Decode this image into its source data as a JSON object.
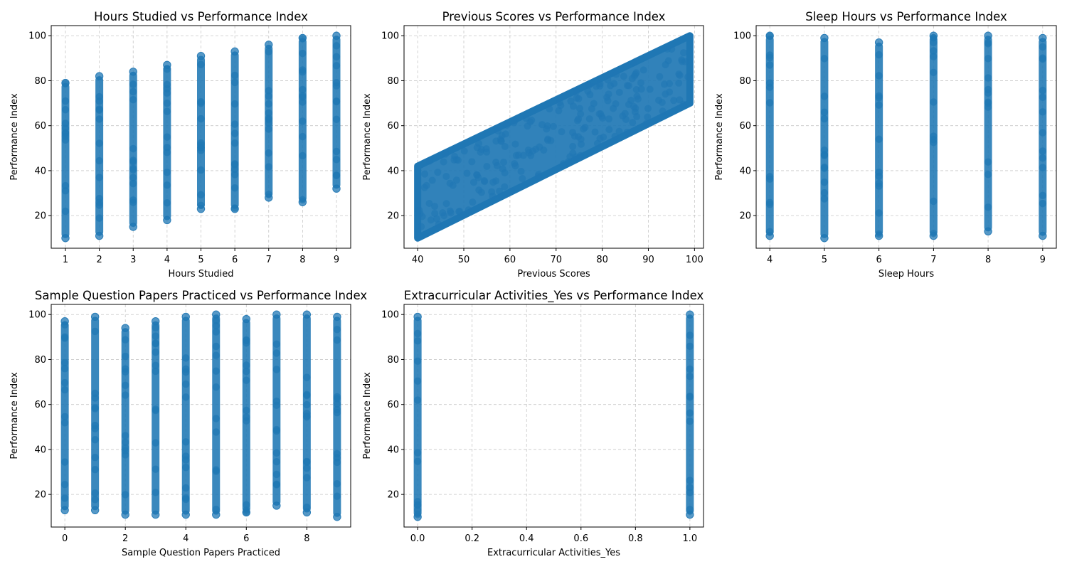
{
  "chart_data": [
    {
      "type": "scatter",
      "title": "Hours Studied vs Performance Index",
      "xlabel": "Hours Studied",
      "ylabel": "Performance Index",
      "xlim": [
        0.58,
        9.42
      ],
      "ylim": [
        5.5,
        104.5
      ],
      "xticks": [
        1,
        2,
        3,
        4,
        5,
        6,
        7,
        8,
        9
      ],
      "yticks": [
        20,
        40,
        60,
        80,
        100
      ],
      "grid": true,
      "color": "#1f77b4",
      "stripes": [
        {
          "x": 1,
          "y": [
            10,
            79
          ]
        },
        {
          "x": 2,
          "y": [
            11,
            82
          ]
        },
        {
          "x": 3,
          "y": [
            15,
            84
          ]
        },
        {
          "x": 4,
          "y": [
            18,
            87
          ]
        },
        {
          "x": 5,
          "y": [
            23,
            91
          ]
        },
        {
          "x": 6,
          "y": [
            23,
            93
          ]
        },
        {
          "x": 7,
          "y": [
            28,
            96
          ]
        },
        {
          "x": 8,
          "y": [
            26,
            99
          ]
        },
        {
          "x": 9,
          "y": [
            32,
            100
          ]
        }
      ]
    },
    {
      "type": "scatter",
      "title": "Previous Scores vs Performance Index",
      "xlabel": "Previous Scores",
      "ylabel": "Performance Index",
      "xlim": [
        37.05,
        101.95
      ],
      "ylim": [
        5.5,
        104.5
      ],
      "xticks": [
        40,
        50,
        60,
        70,
        80,
        90,
        100
      ],
      "yticks": [
        20,
        40,
        60,
        80,
        100
      ],
      "grid": true,
      "color": "#1f77b4",
      "band": {
        "x": [
          40,
          99
        ],
        "low": [
          10,
          70
        ],
        "high": [
          42,
          100
        ]
      }
    },
    {
      "type": "scatter",
      "title": "Sleep Hours vs Performance Index",
      "xlabel": "Sleep Hours",
      "ylabel": "Performance Index",
      "xlim": [
        3.75,
        9.25
      ],
      "ylim": [
        5.5,
        104.5
      ],
      "xticks": [
        4,
        5,
        6,
        7,
        8,
        9
      ],
      "yticks": [
        20,
        40,
        60,
        80,
        100
      ],
      "grid": true,
      "color": "#1f77b4",
      "stripes": [
        {
          "x": 4,
          "y": [
            11,
            100
          ]
        },
        {
          "x": 5,
          "y": [
            10,
            99
          ]
        },
        {
          "x": 6,
          "y": [
            11,
            97
          ]
        },
        {
          "x": 7,
          "y": [
            11,
            100
          ]
        },
        {
          "x": 8,
          "y": [
            13,
            100
          ]
        },
        {
          "x": 9,
          "y": [
            11,
            99
          ]
        }
      ]
    },
    {
      "type": "scatter",
      "title": "Sample Question Papers Practiced vs Performance Index",
      "xlabel": "Sample Question Papers Practiced",
      "ylabel": "Performance Index",
      "xlim": [
        -0.45,
        9.45
      ],
      "ylim": [
        5.5,
        104.5
      ],
      "xticks": [
        0,
        2,
        4,
        6,
        8
      ],
      "yticks": [
        20,
        40,
        60,
        80,
        100
      ],
      "grid": true,
      "color": "#1f77b4",
      "stripes": [
        {
          "x": 0,
          "y": [
            13,
            97
          ]
        },
        {
          "x": 1,
          "y": [
            13,
            99
          ]
        },
        {
          "x": 2,
          "y": [
            11,
            94
          ]
        },
        {
          "x": 3,
          "y": [
            11,
            97
          ]
        },
        {
          "x": 4,
          "y": [
            11,
            99
          ]
        },
        {
          "x": 5,
          "y": [
            11,
            100
          ]
        },
        {
          "x": 6,
          "y": [
            12,
            98
          ]
        },
        {
          "x": 7,
          "y": [
            15,
            100
          ]
        },
        {
          "x": 8,
          "y": [
            12,
            100
          ]
        },
        {
          "x": 9,
          "y": [
            10,
            99
          ]
        }
      ]
    },
    {
      "type": "scatter",
      "title": "Extracurricular Activities_Yes vs Performance Index",
      "xlabel": "Extracurricular Activities_Yes",
      "ylabel": "Performance Index",
      "xlim": [
        -0.05,
        1.05
      ],
      "ylim": [
        5.5,
        104.5
      ],
      "xticks": [
        0.0,
        0.2,
        0.4,
        0.6,
        0.8,
        1.0
      ],
      "yticks": [
        20,
        40,
        60,
        80,
        100
      ],
      "grid": true,
      "color": "#1f77b4",
      "stripes": [
        {
          "x": 0,
          "y": [
            10,
            99
          ]
        },
        {
          "x": 1,
          "y": [
            11,
            100
          ]
        }
      ]
    }
  ]
}
